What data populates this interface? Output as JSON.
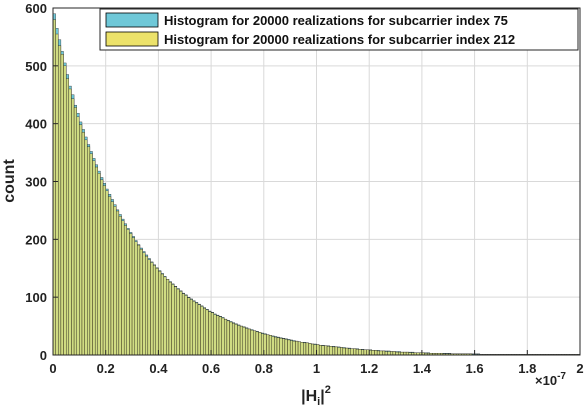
{
  "chart_data": {
    "type": "bar",
    "title": "",
    "xlabel": "|H_i|^2",
    "xlabel_parts": {
      "base": "|H",
      "sub": "i",
      "close": "|",
      "sup": "2"
    },
    "ylabel": "count",
    "x_exponent_label": {
      "base": "×10",
      "sup": "-7"
    },
    "xlim": [
      0,
      2.0
    ],
    "ylim": [
      0,
      600
    ],
    "xticks": [
      "0",
      "0.2",
      "0.4",
      "0.6",
      "0.8",
      "1",
      "1.2",
      "1.4",
      "1.6",
      "1.8",
      "2"
    ],
    "yticks": [
      "0",
      "100",
      "200",
      "300",
      "400",
      "500",
      "600"
    ],
    "grid": true,
    "legend_position": "top-right",
    "bin_width": 0.01,
    "series": [
      {
        "name": "Histogram for 20000 realizations for subcarrier index 75",
        "color": "#6fc8d8",
        "values": [
          590,
          565,
          545,
          525,
          505,
          485,
          465,
          450,
          432,
          418,
          403,
          390,
          377,
          364,
          352,
          340,
          329,
          318,
          307,
          297,
          287,
          278,
          269,
          260,
          251,
          243,
          235,
          227,
          219,
          212,
          205,
          198,
          191,
          185,
          179,
          173,
          167,
          161,
          156,
          151,
          146,
          141,
          136,
          131,
          127,
          123,
          119,
          115,
          111,
          107,
          104,
          100,
          97,
          94,
          91,
          88,
          85,
          82,
          79,
          76,
          74,
          71,
          69,
          67,
          65,
          62,
          60,
          58,
          56,
          54,
          52,
          50,
          49,
          47,
          45,
          44,
          42,
          41,
          39,
          38,
          37,
          35,
          34,
          33,
          32,
          31,
          30,
          29,
          28,
          27,
          26,
          25,
          24,
          23,
          22,
          22,
          21,
          20,
          19,
          19,
          18,
          17,
          17,
          16,
          16,
          15,
          15,
          14,
          14,
          13,
          13,
          12,
          12,
          11,
          11,
          11,
          10,
          10,
          9,
          9,
          9,
          8,
          8,
          8,
          7,
          7,
          7,
          7,
          6,
          6,
          6,
          6,
          5,
          5,
          5,
          5,
          5,
          4,
          4,
          4,
          4,
          4,
          4,
          3,
          3,
          3,
          3,
          3,
          3,
          3,
          3,
          2,
          2,
          2,
          2,
          2,
          2,
          2,
          2,
          2,
          2,
          2,
          1,
          1,
          1,
          1,
          1,
          1,
          1,
          1,
          1,
          1,
          1,
          1,
          1,
          1,
          1,
          1,
          1,
          1,
          1,
          1,
          1,
          1,
          1,
          1,
          1,
          1,
          1,
          1,
          1,
          1,
          1,
          1,
          1,
          1,
          1,
          1,
          1,
          1
        ]
      },
      {
        "name": "Histogram for 20000 realizations for subcarrier index 212",
        "color": "#ece26a",
        "values": [
          580,
          555,
          535,
          520,
          500,
          478,
          460,
          443,
          428,
          412,
          398,
          385,
          372,
          360,
          348,
          336,
          325,
          314,
          303,
          293,
          284,
          274,
          265,
          257,
          249,
          240,
          232,
          224,
          217,
          210,
          203,
          196,
          190,
          183,
          177,
          171,
          165,
          160,
          155,
          150,
          145,
          140,
          135,
          131,
          126,
          122,
          118,
          114,
          110,
          106,
          103,
          99,
          96,
          93,
          90,
          87,
          84,
          81,
          78,
          75,
          73,
          70,
          68,
          66,
          64,
          62,
          59,
          57,
          55,
          53,
          51,
          50,
          48,
          46,
          45,
          43,
          42,
          40,
          39,
          37,
          36,
          35,
          34,
          32,
          31,
          30,
          29,
          28,
          27,
          26,
          25,
          24,
          24,
          23,
          22,
          21,
          21,
          20,
          19,
          18,
          18,
          17,
          16,
          16,
          15,
          15,
          14,
          14,
          13,
          13,
          12,
          12,
          11,
          11,
          11,
          10,
          10,
          9,
          9,
          9,
          8,
          8,
          8,
          7,
          7,
          7,
          6,
          6,
          6,
          6,
          5,
          5,
          5,
          5,
          5,
          4,
          4,
          4,
          4,
          4,
          4,
          3,
          3,
          3,
          3,
          3,
          3,
          3,
          2,
          2,
          2,
          2,
          2,
          2,
          2,
          2,
          2,
          2,
          2,
          1,
          1,
          1,
          1,
          1,
          1,
          1,
          1,
          1,
          1,
          1,
          1,
          1,
          1,
          1,
          1,
          1,
          1,
          1,
          1,
          1,
          1,
          1,
          1,
          1,
          1,
          1,
          1,
          1,
          1,
          1,
          1,
          1,
          1,
          1,
          1,
          1,
          1,
          1,
          1,
          1
        ]
      }
    ]
  }
}
